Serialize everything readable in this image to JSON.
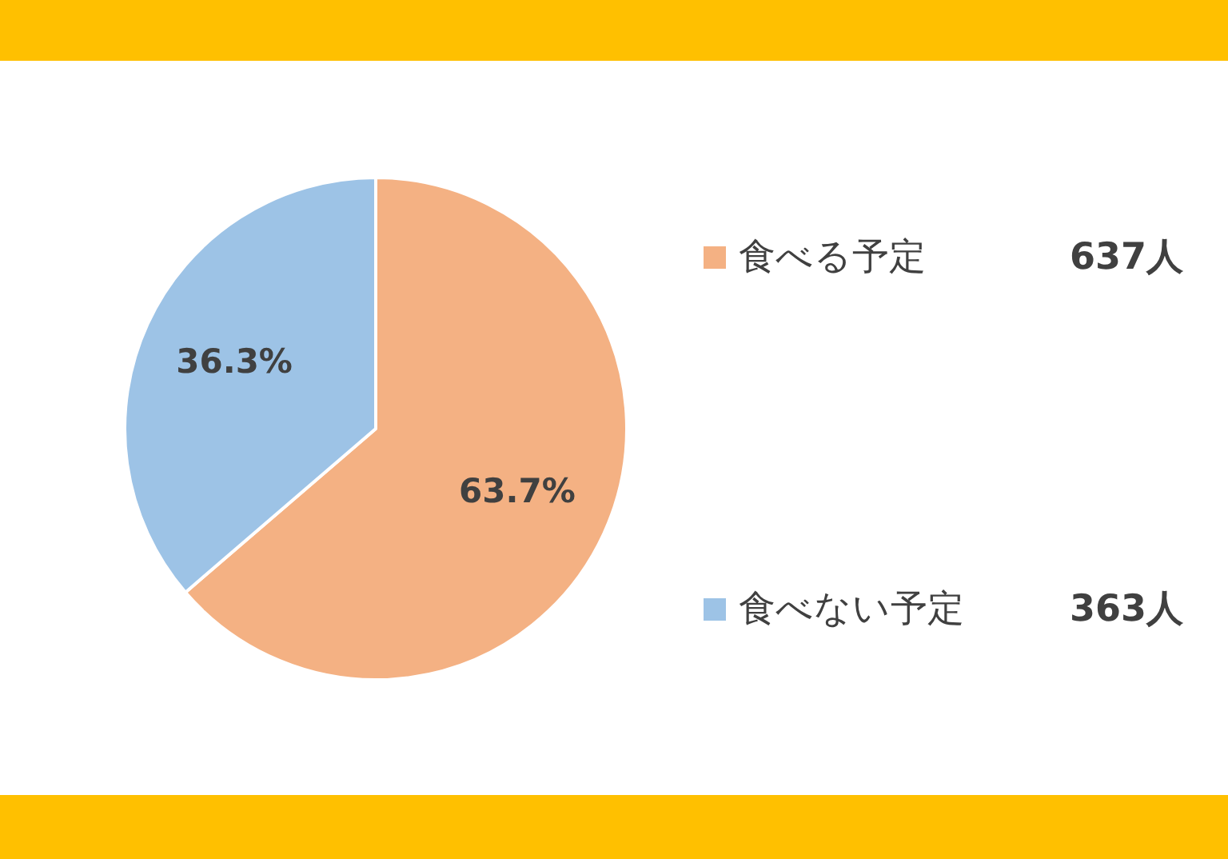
{
  "chart_data": {
    "type": "pie",
    "categories": [
      "食べる予定",
      "食べない予定"
    ],
    "values": [
      63.7,
      36.3
    ],
    "colors": [
      "#f4b183",
      "#9dc3e6"
    ],
    "value_labels": [
      "63.7%",
      "36.3%"
    ],
    "annotations": [
      "637人",
      "363人"
    ],
    "legend": "right"
  }
}
